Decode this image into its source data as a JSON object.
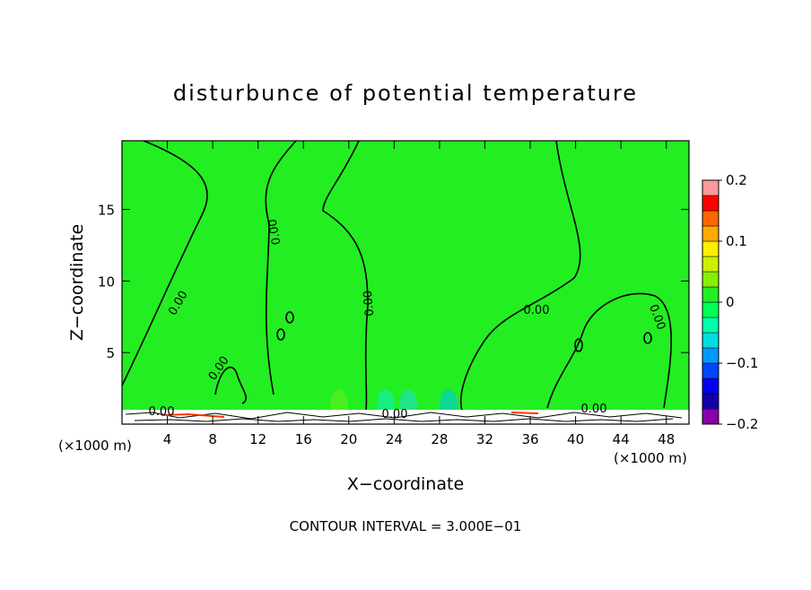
{
  "chart_data": {
    "type": "contour",
    "title": "disturbunce of potential temperature",
    "x_label": "X−coordinate",
    "y_label": "Z−coordinate",
    "x_unit": "(×1000 m)",
    "y_unit": "(×1000 m)",
    "footnote": "CONTOUR INTERVAL = 3.000E−01",
    "xlim": [
      0,
      50
    ],
    "xticks": [
      4,
      8,
      12,
      16,
      20,
      24,
      28,
      32,
      36,
      40,
      44,
      48
    ],
    "ylim": [
      0,
      19.8
    ],
    "yticks": [
      5,
      10,
      15
    ],
    "contour_labels": [
      "0.00",
      "0.00",
      "0.00",
      "0.00",
      "0.00",
      "0.00",
      "0.00",
      "0.00",
      "0.00"
    ],
    "colorbar": {
      "lim": [
        -0.2,
        0.2
      ],
      "ticks": [
        {
          "value": 0.2,
          "label": "0.2"
        },
        {
          "value": 0.1,
          "label": "0.1"
        },
        0,
        {
          "value": -0.1,
          "label": "−0.1"
        },
        {
          "value": -0.2,
          "label": "−0.2"
        }
      ],
      "colors": [
        "#8800aa",
        "#1100aa",
        "#0000ee",
        "#0044ff",
        "#0099ff",
        "#00dddd",
        "#00ffaa",
        "#00ff55",
        "#22ee22",
        "#88ee00",
        "#ccee00",
        "#ffee00",
        "#ffaa00",
        "#ff6600",
        "#ff0000",
        "#ff9999"
      ]
    },
    "field_color": "#22ee22"
  }
}
